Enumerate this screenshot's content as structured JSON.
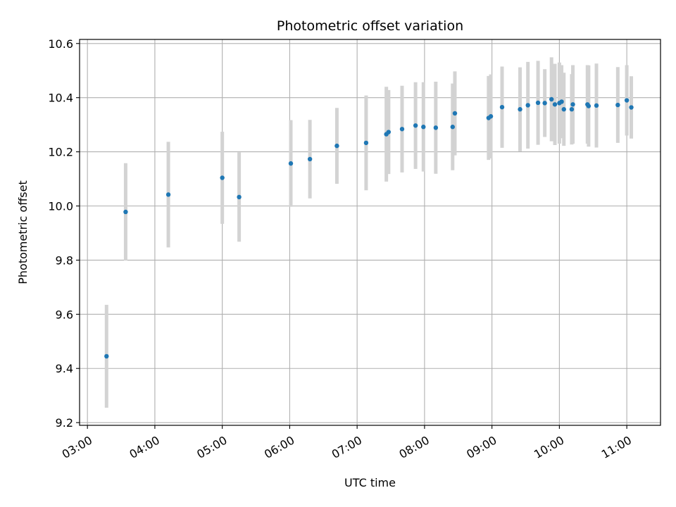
{
  "chart_data": {
    "type": "scatter",
    "title": "Photometric offset variation",
    "xlabel": "UTC time",
    "ylabel": "Photometric offset",
    "xlim": [
      "02:53",
      "11:30"
    ],
    "ylim": [
      9.19,
      10.615
    ],
    "x_ticks": [
      "03:00",
      "04:00",
      "05:00",
      "06:00",
      "07:00",
      "08:00",
      "09:00",
      "10:00",
      "11:00"
    ],
    "y_ticks": [
      "9.2",
      "9.4",
      "9.6",
      "9.8",
      "10.0",
      "10.2",
      "10.4",
      "10.6"
    ],
    "y_tick_values": [
      9.2,
      9.4,
      9.6,
      9.8,
      10.0,
      10.2,
      10.4,
      10.6
    ],
    "grid": true,
    "x_tick_rotation": "30 degrees",
    "colors": {
      "marker": "#1f77b4",
      "errorbar": "#d3d3d3",
      "grid": "#b0b0b0"
    },
    "series": [
      {
        "points": [
          {
            "x": "03:17",
            "y": 9.445,
            "err": 0.19
          },
          {
            "x": "03:34",
            "y": 9.978,
            "err": 0.18
          },
          {
            "x": "04:12",
            "y": 10.042,
            "err": 0.195
          },
          {
            "x": "05:00",
            "y": 10.104,
            "err": 0.17
          },
          {
            "x": "05:15",
            "y": 10.033,
            "err": 0.165
          },
          {
            "x": "06:01",
            "y": 10.157,
            "err": 0.16
          },
          {
            "x": "06:18",
            "y": 10.173,
            "err": 0.145
          },
          {
            "x": "06:42",
            "y": 10.222,
            "err": 0.14
          },
          {
            "x": "07:08",
            "y": 10.233,
            "err": 0.175
          },
          {
            "x": "07:26",
            "y": 10.265,
            "err": 0.175
          },
          {
            "x": "07:28",
            "y": 10.273,
            "err": 0.155
          },
          {
            "x": "07:40",
            "y": 10.284,
            "err": 0.16
          },
          {
            "x": "07:52",
            "y": 10.297,
            "err": 0.16
          },
          {
            "x": "07:59",
            "y": 10.292,
            "err": 0.165
          },
          {
            "x": "08:10",
            "y": 10.289,
            "err": 0.17
          },
          {
            "x": "08:25",
            "y": 10.292,
            "err": 0.16
          },
          {
            "x": "08:27",
            "y": 10.342,
            "err": 0.155
          },
          {
            "x": "08:57",
            "y": 10.325,
            "err": 0.155
          },
          {
            "x": "08:59",
            "y": 10.331,
            "err": 0.155
          },
          {
            "x": "09:09",
            "y": 10.365,
            "err": 0.15
          },
          {
            "x": "09:25",
            "y": 10.357,
            "err": 0.155
          },
          {
            "x": "09:32",
            "y": 10.372,
            "err": 0.16
          },
          {
            "x": "09:41",
            "y": 10.381,
            "err": 0.155
          },
          {
            "x": "09:47",
            "y": 10.38,
            "err": 0.125
          },
          {
            "x": "09:53",
            "y": 10.394,
            "err": 0.155
          },
          {
            "x": "09:56",
            "y": 10.375,
            "err": 0.15
          },
          {
            "x": "10:00",
            "y": 10.38,
            "err": 0.15
          },
          {
            "x": "10:02",
            "y": 10.385,
            "err": 0.135
          },
          {
            "x": "10:04",
            "y": 10.357,
            "err": 0.135
          },
          {
            "x": "10:11",
            "y": 10.357,
            "err": 0.13
          },
          {
            "x": "10:12",
            "y": 10.375,
            "err": 0.145
          },
          {
            "x": "10:25",
            "y": 10.375,
            "err": 0.145
          },
          {
            "x": "10:26",
            "y": 10.369,
            "err": 0.15
          },
          {
            "x": "10:33",
            "y": 10.371,
            "err": 0.155
          },
          {
            "x": "10:52",
            "y": 10.373,
            "err": 0.14
          },
          {
            "x": "11:00",
            "y": 10.39,
            "err": 0.13
          },
          {
            "x": "11:04",
            "y": 10.364,
            "err": 0.115
          }
        ]
      }
    ]
  }
}
